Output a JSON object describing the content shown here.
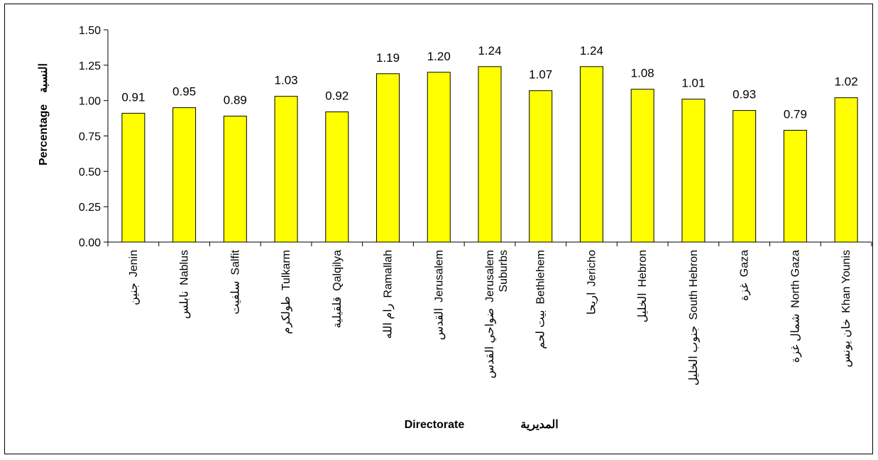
{
  "chart_data": {
    "type": "bar",
    "xlabel": "Directorate",
    "xlabel_ar": "المديرية",
    "ylabel": "Percentage",
    "ylabel_ar": "النسبة",
    "ylim": [
      0,
      1.5
    ],
    "yticks": [
      "0.00",
      "0.25",
      "0.50",
      "0.75",
      "1.00",
      "1.25",
      "1.50"
    ],
    "grid": false,
    "legend": "none",
    "bar_color": "#ffff00",
    "categories": [
      {
        "en": "Jenin",
        "ar": "جنين",
        "en2": ""
      },
      {
        "en": "Nablus",
        "ar": "نابلس",
        "en2": ""
      },
      {
        "en": "Salfit",
        "ar": "سلفيت",
        "en2": ""
      },
      {
        "en": "Tulkarm",
        "ar": "طولكرم",
        "en2": ""
      },
      {
        "en": "Qalqilya",
        "ar": "قلقيلية",
        "en2": ""
      },
      {
        "en": "Ramallah",
        "ar": "رام الله",
        "en2": ""
      },
      {
        "en": "Jerusalem",
        "ar": "القدس",
        "en2": ""
      },
      {
        "en": "Jerusalem",
        "ar": "ضواحي القدس",
        "en2": "Suburbs"
      },
      {
        "en": "Bethlehem",
        "ar": "بيت لحم",
        "en2": ""
      },
      {
        "en": "Jericho",
        "ar": "اريحا",
        "en2": ""
      },
      {
        "en": "Hebron",
        "ar": "الخليل",
        "en2": ""
      },
      {
        "en": "South Hebron",
        "ar": "جنوب الخليل",
        "en2": ""
      },
      {
        "en": "Gaza",
        "ar": "غزة",
        "en2": ""
      },
      {
        "en": "North Gaza",
        "ar": "شمال غزة",
        "en2": ""
      },
      {
        "en": "Khan Younis",
        "ar": "خان يونس",
        "en2": ""
      }
    ],
    "values": [
      0.91,
      0.95,
      0.89,
      1.03,
      0.92,
      1.19,
      1.2,
      1.24,
      1.07,
      1.24,
      1.08,
      1.01,
      0.93,
      0.79,
      1.02
    ],
    "value_labels": [
      "0.91",
      "0.95",
      "0.89",
      "1.03",
      "0.92",
      "1.19",
      "1.20",
      "1.24",
      "1.07",
      "1.24",
      "1.08",
      "1.01",
      "0.93",
      "0.79",
      "1.02"
    ]
  }
}
